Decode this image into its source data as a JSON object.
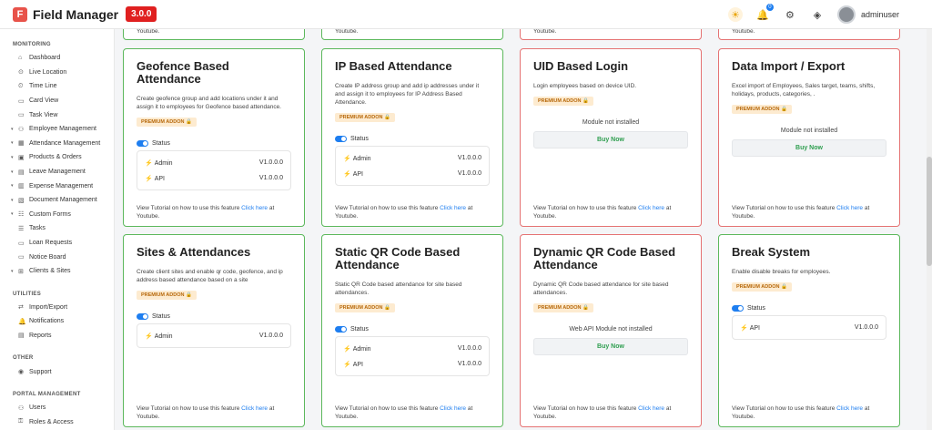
{
  "header": {
    "app_name": "Field Manager",
    "version": "3.0.0",
    "notif_count": "0",
    "username": "adminuser"
  },
  "sidebar": {
    "sections": [
      {
        "title": "MONITORING",
        "items": [
          {
            "label": "Dashboard",
            "icon": "home-icon",
            "glyph": "⌂",
            "sub": true,
            "expandable": false
          },
          {
            "label": "Live Location",
            "icon": "location-icon",
            "glyph": "⊙",
            "sub": true,
            "expandable": false
          },
          {
            "label": "Time Line",
            "icon": "timeline-icon",
            "glyph": "⏲",
            "sub": true,
            "expandable": false
          },
          {
            "label": "Card View",
            "icon": "card-icon",
            "glyph": "▭",
            "sub": true,
            "expandable": false
          },
          {
            "label": "Task View",
            "icon": "task-icon",
            "glyph": "▭",
            "sub": true,
            "expandable": false
          },
          {
            "label": "Employee Management",
            "icon": "users-icon",
            "glyph": "⚇",
            "sub": false,
            "expandable": true
          },
          {
            "label": "Attendance Management",
            "icon": "calendar-icon",
            "glyph": "▦",
            "sub": false,
            "expandable": true
          },
          {
            "label": "Products & Orders",
            "icon": "box-icon",
            "glyph": "▣",
            "sub": false,
            "expandable": true
          },
          {
            "label": "Leave Management",
            "icon": "leave-icon",
            "glyph": "▤",
            "sub": false,
            "expandable": true
          },
          {
            "label": "Expense Management",
            "icon": "expense-icon",
            "glyph": "▥",
            "sub": false,
            "expandable": true
          },
          {
            "label": "Document Management",
            "icon": "document-icon",
            "glyph": "▧",
            "sub": false,
            "expandable": true
          },
          {
            "label": "Custom Forms",
            "icon": "forms-icon",
            "glyph": "☷",
            "sub": false,
            "expandable": true
          },
          {
            "label": "Tasks",
            "icon": "tasks-icon",
            "glyph": "☰",
            "sub": true,
            "expandable": false
          },
          {
            "label": "Loan Requests",
            "icon": "loan-icon",
            "glyph": "▭",
            "sub": true,
            "expandable": false
          },
          {
            "label": "Notice Board",
            "icon": "notice-icon",
            "glyph": "▭",
            "sub": true,
            "expandable": false
          },
          {
            "label": "Clients & Sites",
            "icon": "clients-icon",
            "glyph": "⊞",
            "sub": false,
            "expandable": true
          }
        ]
      },
      {
        "title": "UTILITIES",
        "items": [
          {
            "label": "Import/Export",
            "icon": "import-export-icon",
            "glyph": "⇄",
            "sub": true,
            "expandable": false
          },
          {
            "label": "Notifications",
            "icon": "bell-icon",
            "glyph": "🔔",
            "sub": true,
            "expandable": false
          },
          {
            "label": "Reports",
            "icon": "reports-icon",
            "glyph": "▤",
            "sub": true,
            "expandable": false
          }
        ]
      },
      {
        "title": "OTHER",
        "items": [
          {
            "label": "Support",
            "icon": "support-icon",
            "glyph": "◉",
            "sub": true,
            "expandable": false
          }
        ]
      },
      {
        "title": "PORTAL MANAGEMENT",
        "items": [
          {
            "label": "Users",
            "icon": "user-icon",
            "glyph": "⚇",
            "sub": true,
            "expandable": false
          },
          {
            "label": "Roles & Access",
            "icon": "roles-icon",
            "glyph": "⚿",
            "sub": true,
            "expandable": false
          }
        ]
      }
    ]
  },
  "top_snippets": [
    "Youtube.",
    "Youtube.",
    "Youtube.",
    "Youtube."
  ],
  "cards": [
    {
      "title": "Geofence Based Attendance",
      "desc": "Create geofence group and add locations under it and assign it to employees for Geofence based attendance.",
      "addon": "PREMIUM ADDON 🔒",
      "installed": true,
      "status": "Status",
      "modules": [
        {
          "name": "Admin",
          "version": "V1.0.0.0"
        },
        {
          "name": "API",
          "version": "V1.0.0.0"
        }
      ],
      "tut_pre": "View Tutorial on how to use this feature ",
      "tut_link": "Click here",
      "tut_post": " at Youtube."
    },
    {
      "title": "IP Based Attendance",
      "desc": "Create IP address group and add ip addresses under it and assign it to employees for IP Address Based Attendance.",
      "addon": "PREMIUM ADDON 🔒",
      "installed": true,
      "status": "Status",
      "modules": [
        {
          "name": "Admin",
          "version": "V1.0.0.0"
        },
        {
          "name": "API",
          "version": "V1.0.0.0"
        }
      ],
      "tut_pre": "View Tutorial on how to use this feature ",
      "tut_link": "Click here",
      "tut_post": " at Youtube."
    },
    {
      "title": "UID Based Login",
      "desc": "Login employees based on device UID.",
      "addon": "PREMIUM ADDON 🔒",
      "installed": false,
      "not_installed": "Module not installed",
      "buy": "Buy Now",
      "tut_pre": "View Tutorial on how to use this feature ",
      "tut_link": "Click here",
      "tut_post": " at Youtube."
    },
    {
      "title": "Data Import / Export",
      "desc": "Excel import of Employees, Sales target, teams, shifts, holidays, products, categories, .",
      "addon": "PREMIUM ADDON 🔒",
      "installed": false,
      "not_installed": "Module not installed",
      "buy": "Buy Now",
      "tut_pre": "View Tutorial on how to use this feature ",
      "tut_link": "Click here",
      "tut_post": " at Youtube."
    },
    {
      "title": "Sites & Attendances",
      "desc": "Create client sites and enable qr code, geofence, and ip address based attendance based on a site",
      "addon": "PREMIUM ADDON 🔒",
      "installed": true,
      "status": "Status",
      "modules": [
        {
          "name": "Admin",
          "version": "V1.0.0.0"
        }
      ],
      "tut_pre": "View Tutorial on how to use this feature ",
      "tut_link": "Click here",
      "tut_post": " at Youtube."
    },
    {
      "title": "Static QR Code Based Attendance",
      "desc": "Static QR Code based attendance for site based attendances.",
      "addon": "PREMIUM ADDON 🔒",
      "installed": true,
      "status": "Status",
      "modules": [
        {
          "name": "Admin",
          "version": "V1.0.0.0"
        },
        {
          "name": "API",
          "version": "V1.0.0.0"
        }
      ],
      "tut_pre": "View Tutorial on how to use this feature ",
      "tut_link": "Click here",
      "tut_post": " at Youtube."
    },
    {
      "title": "Dynamic QR Code Based Attendance",
      "desc": "Dynamic QR Code based attendance for site based attendances.",
      "addon": "PREMIUM ADDON 🔒",
      "installed": false,
      "not_installed": "Web API Module not installed",
      "buy": "Buy Now",
      "tut_pre": "View Tutorial on how to use this feature ",
      "tut_link": "Click here",
      "tut_post": " at Youtube."
    },
    {
      "title": "Break System",
      "desc": "Enable disable breaks for employees.",
      "addon": "PREMIUM ADDON 🔒",
      "installed": true,
      "status": "Status",
      "modules": [
        {
          "name": "API",
          "version": "V1.0.0.0"
        }
      ],
      "tut_pre": "View Tutorial on how to use this feature ",
      "tut_link": "Click here",
      "tut_post": " at Youtube."
    }
  ]
}
